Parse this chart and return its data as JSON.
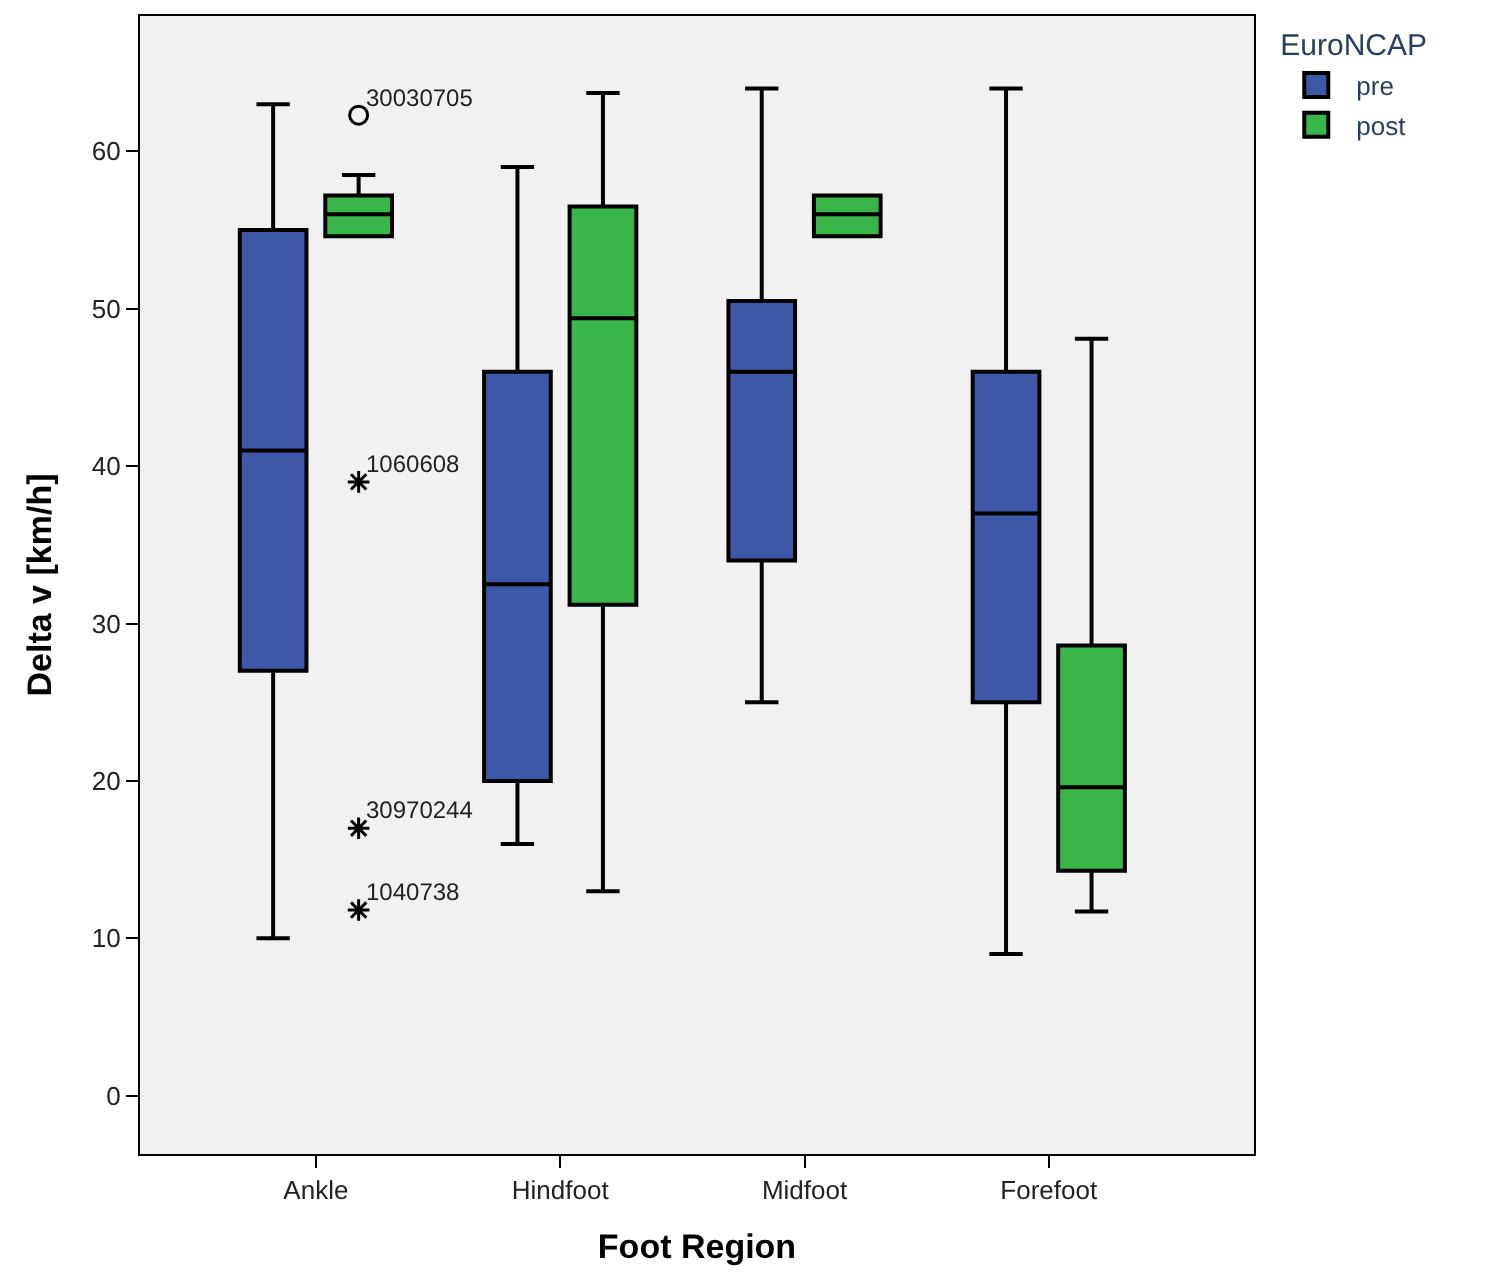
{
  "chart_data": {
    "type": "box",
    "xlabel": "Foot Region",
    "ylabel": "Delta v [km/h]",
    "legend_title": "EuroNCAP",
    "categories": [
      "Ankle",
      "Hindfoot",
      "Midfoot",
      "Forefoot"
    ],
    "ylim": [
      -3.7,
      68.6
    ],
    "yticks": [
      0,
      10,
      20,
      30,
      40,
      50,
      60
    ],
    "legend": "top right",
    "grid": false,
    "series": [
      {
        "name": "pre",
        "color": "#3c58a6",
        "boxes": [
          {
            "low": 10,
            "q1": 27,
            "median": 41,
            "q3": 55,
            "high": 63
          },
          {
            "low": 16,
            "q1": 20,
            "median": 32.5,
            "q3": 46,
            "high": 59
          },
          {
            "low": 25,
            "q1": 34,
            "median": 46,
            "q3": 50.5,
            "high": 64
          },
          {
            "low": 9,
            "q1": 25,
            "median": 37,
            "q3": 46,
            "high": 64
          }
        ]
      },
      {
        "name": "post",
        "color": "#3ab54a",
        "boxes": [
          {
            "low": 54.6,
            "q1": 54.6,
            "median": 56,
            "q3": 57.2,
            "high": 58.5,
            "outliers": [
              62.3,
              39,
              17,
              11.8
            ]
          },
          {
            "low": 13,
            "q1": 31.2,
            "median": 49.4,
            "q3": 56.5,
            "high": 63.7
          },
          {
            "low": 54.6,
            "q1": 54.6,
            "median": 56,
            "q3": 57.2,
            "high": 57.2
          },
          {
            "low": 11.7,
            "q1": 14.3,
            "median": 19.6,
            "q3": 28.6,
            "high": 48.1
          }
        ]
      }
    ],
    "annotations": [
      "30030705",
      "1060608",
      "30970244",
      "1040738"
    ]
  }
}
